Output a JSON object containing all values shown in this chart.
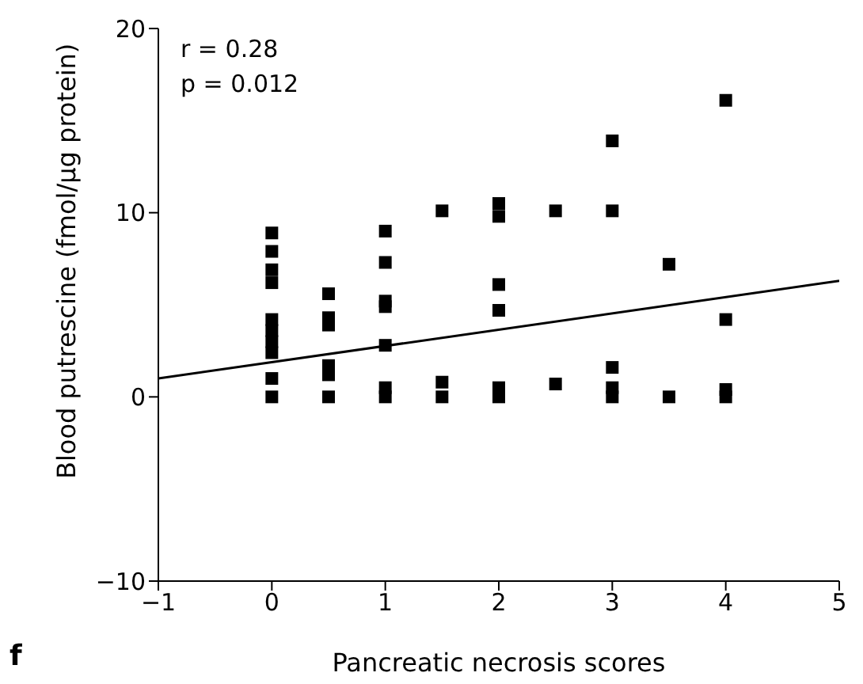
{
  "chart_data": {
    "type": "scatter",
    "xlabel": "Pancreatic necrosis scores",
    "ylabel": "Blood putrescine (fmol/µg protein)",
    "annotations": [
      "r = 0.28",
      "p = 0.012",
      "f"
    ],
    "xlim": [
      -1,
      5
    ],
    "xticks": [
      -1,
      0,
      1,
      2,
      3,
      4,
      5
    ],
    "ylim": [
      -10,
      20
    ],
    "yticks": [
      -10,
      0,
      10,
      20
    ],
    "grid": false,
    "series": [
      {
        "color": "#000000",
        "marker": "square",
        "x": [
          0,
          0,
          0,
          0,
          0,
          0,
          0,
          0,
          0,
          0,
          0.5,
          0.5,
          0.5,
          0.5,
          0.5,
          0.5,
          1,
          1,
          1,
          1,
          1,
          1,
          1,
          1.5,
          1.5,
          1.5,
          2,
          2,
          2,
          2,
          2,
          2,
          2.5,
          2.5,
          3,
          3,
          3,
          3,
          3,
          3.5,
          3.5,
          4,
          4,
          4,
          4
        ],
        "values": [
          8.9,
          7.9,
          6.9,
          6.2,
          4.2,
          3.6,
          3.0,
          2.4,
          1.0,
          0,
          5.6,
          4.3,
          3.9,
          1.7,
          1.2,
          0,
          9.0,
          7.3,
          5.2,
          4.9,
          2.8,
          0.5,
          0,
          10.1,
          0.8,
          0,
          10.5,
          9.8,
          6.1,
          4.7,
          0.5,
          0,
          10.1,
          0.7,
          13.9,
          10.1,
          1.6,
          0.5,
          0,
          7.2,
          0,
          16.1,
          4.2,
          0.4,
          0
        ]
      },
      {
        "type": "line",
        "color": "#000000",
        "marker": "none",
        "line_style": "solid",
        "x": [
          -1,
          5
        ],
        "values": [
          1.0,
          6.3
        ]
      }
    ]
  }
}
